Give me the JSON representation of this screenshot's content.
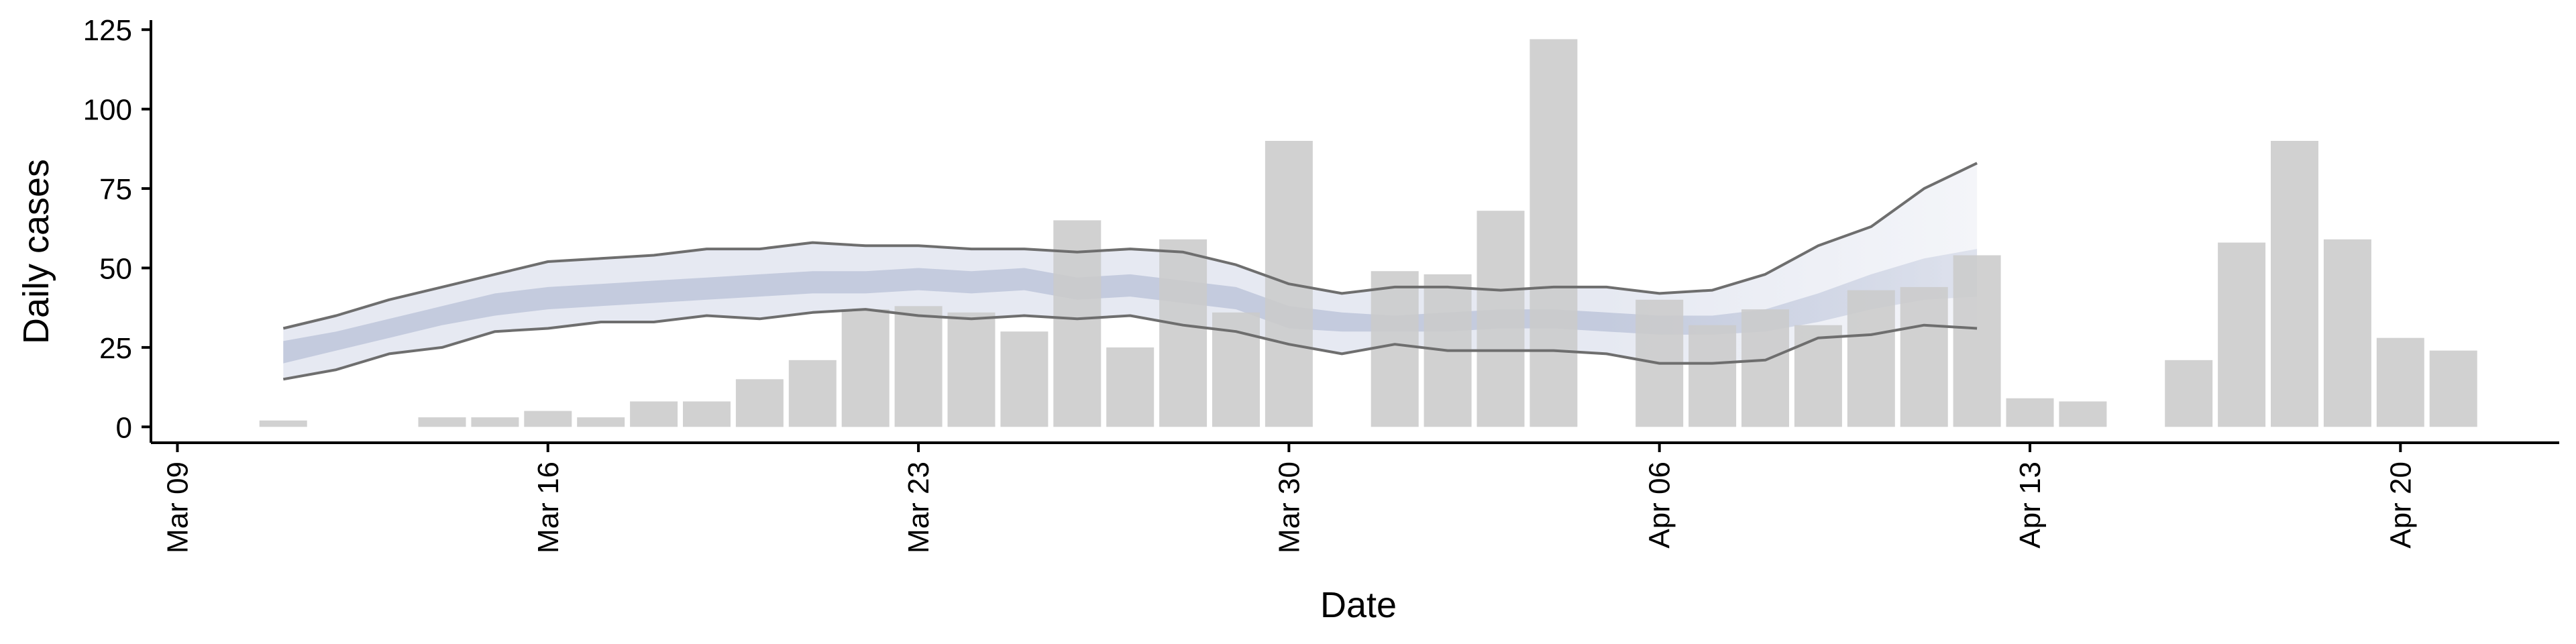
{
  "chart_data": {
    "type": "bar",
    "xlabel": "Date",
    "ylabel": "Daily cases",
    "ylim": [
      -5,
      128
    ],
    "xlim": [
      "2020-03-08T12:00",
      "2020-04-23T00:00"
    ],
    "yticks": [
      0,
      25,
      50,
      75,
      100,
      125
    ],
    "xticks": [
      {
        "date": "2020-03-09",
        "label": "Mar 09"
      },
      {
        "date": "2020-03-16",
        "label": "Mar 16"
      },
      {
        "date": "2020-03-23",
        "label": "Mar 23"
      },
      {
        "date": "2020-03-30",
        "label": "Mar 30"
      },
      {
        "date": "2020-04-06",
        "label": "Apr 06"
      },
      {
        "date": "2020-04-13",
        "label": "Apr 13"
      },
      {
        "date": "2020-04-20",
        "label": "Apr 20"
      }
    ],
    "grid": false,
    "colors": {
      "bars": "#cbcbcb",
      "band_outer": "#e6e9f2",
      "band_inner": "#c4cbde",
      "bound_lines": "#6e6e6e"
    },
    "bars": [
      {
        "date": "2020-03-11",
        "value": 2
      },
      {
        "date": "2020-03-14",
        "value": 3
      },
      {
        "date": "2020-03-15",
        "value": 3
      },
      {
        "date": "2020-03-16",
        "value": 5
      },
      {
        "date": "2020-03-17",
        "value": 3
      },
      {
        "date": "2020-03-18",
        "value": 8
      },
      {
        "date": "2020-03-19",
        "value": 8
      },
      {
        "date": "2020-03-20",
        "value": 15
      },
      {
        "date": "2020-03-21",
        "value": 21
      },
      {
        "date": "2020-03-22",
        "value": 37
      },
      {
        "date": "2020-03-23",
        "value": 38
      },
      {
        "date": "2020-03-24",
        "value": 36
      },
      {
        "date": "2020-03-25",
        "value": 30
      },
      {
        "date": "2020-03-26",
        "value": 65
      },
      {
        "date": "2020-03-27",
        "value": 25
      },
      {
        "date": "2020-03-28",
        "value": 59
      },
      {
        "date": "2020-03-29",
        "value": 36
      },
      {
        "date": "2020-03-30",
        "value": 90
      },
      {
        "date": "2020-04-01",
        "value": 49
      },
      {
        "date": "2020-04-02",
        "value": 48
      },
      {
        "date": "2020-04-03",
        "value": 68
      },
      {
        "date": "2020-04-04",
        "value": 122
      },
      {
        "date": "2020-04-06",
        "value": 40
      },
      {
        "date": "2020-04-07",
        "value": 32
      },
      {
        "date": "2020-04-08",
        "value": 37
      },
      {
        "date": "2020-04-09",
        "value": 32
      },
      {
        "date": "2020-04-10",
        "value": 43
      },
      {
        "date": "2020-04-11",
        "value": 44
      },
      {
        "date": "2020-04-12",
        "value": 54
      },
      {
        "date": "2020-04-13",
        "value": 9
      },
      {
        "date": "2020-04-14",
        "value": 8
      },
      {
        "date": "2020-04-16",
        "value": 21
      },
      {
        "date": "2020-04-17",
        "value": 58
      },
      {
        "date": "2020-04-18",
        "value": 90
      },
      {
        "date": "2020-04-19",
        "value": 59
      },
      {
        "date": "2020-04-20",
        "value": 28
      },
      {
        "date": "2020-04-21",
        "value": 24
      }
    ],
    "band": {
      "dates": [
        "2020-03-11",
        "2020-03-12",
        "2020-03-13",
        "2020-03-14",
        "2020-03-15",
        "2020-03-16",
        "2020-03-17",
        "2020-03-18",
        "2020-03-19",
        "2020-03-20",
        "2020-03-21",
        "2020-03-22",
        "2020-03-23",
        "2020-03-24",
        "2020-03-25",
        "2020-03-26",
        "2020-03-27",
        "2020-03-28",
        "2020-03-29",
        "2020-03-30",
        "2020-03-31",
        "2020-04-01",
        "2020-04-02",
        "2020-04-03",
        "2020-04-04",
        "2020-04-05",
        "2020-04-06",
        "2020-04-07",
        "2020-04-08",
        "2020-04-09",
        "2020-04-10",
        "2020-04-11",
        "2020-04-12"
      ],
      "outer_low": [
        15,
        18,
        23,
        25,
        30,
        31,
        33,
        33,
        35,
        34,
        36,
        37,
        35,
        34,
        35,
        34,
        35,
        32,
        30,
        26,
        23,
        26,
        24,
        24,
        24,
        23,
        20,
        20,
        21,
        28,
        29,
        32,
        31
      ],
      "outer_high": [
        31,
        35,
        40,
        44,
        48,
        52,
        53,
        54,
        56,
        56,
        58,
        57,
        57,
        56,
        56,
        55,
        56,
        55,
        51,
        45,
        42,
        44,
        44,
        43,
        44,
        44,
        42,
        43,
        48,
        57,
        63,
        75,
        83
      ],
      "inner_low": [
        20,
        24,
        28,
        32,
        35,
        37,
        38,
        39,
        40,
        41,
        42,
        42,
        43,
        42,
        43,
        40,
        41,
        39,
        37,
        31,
        30,
        30,
        30,
        31,
        31,
        30,
        29,
        29,
        30,
        33,
        37,
        40,
        41
      ],
      "inner_high": [
        27,
        30,
        34,
        38,
        42,
        44,
        45,
        46,
        47,
        48,
        49,
        49,
        50,
        49,
        50,
        47,
        48,
        46,
        44,
        38,
        36,
        35,
        36,
        37,
        37,
        36,
        35,
        35,
        37,
        42,
        48,
        53,
        56
      ]
    }
  }
}
